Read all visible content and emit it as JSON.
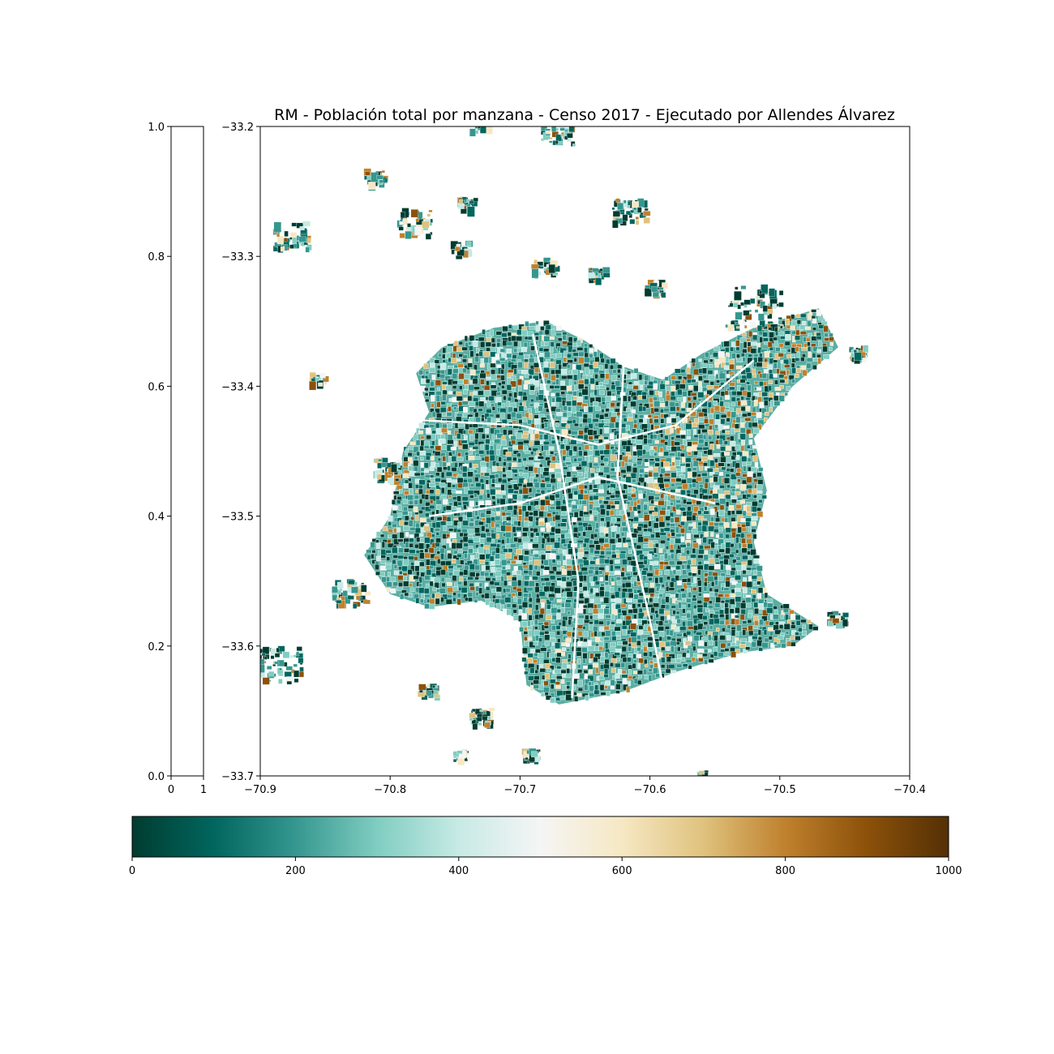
{
  "map": {
    "title": "RM - Población total por manzana - Censo 2017 - Ejecutado por Allendes Álvarez",
    "xlim": [
      -70.9,
      -70.4
    ],
    "ylim": [
      -33.7,
      -33.2
    ],
    "x_ticks": [
      "−70.9",
      "−70.8",
      "−70.7",
      "−70.6",
      "−70.5",
      "−70.4"
    ],
    "y_ticks": [
      "−33.2",
      "−33.3",
      "−33.4",
      "−33.5",
      "−33.6",
      "−33.7"
    ]
  },
  "side_axis": {
    "y_ticks": [
      "1.0",
      "0.8",
      "0.6",
      "0.4",
      "0.2",
      "0.0"
    ],
    "x_ticks": [
      "0",
      "1"
    ]
  },
  "colorbar": {
    "colormap": "BrBG_r",
    "range": [
      0,
      1000
    ],
    "tick_labels": [
      "0",
      "200",
      "400",
      "600",
      "800",
      "1000"
    ],
    "colors": [
      "#003c30",
      "#01665e",
      "#35978f",
      "#80cdc1",
      "#c7eae5",
      "#f5f5f5",
      "#f6e8c3",
      "#dfc27d",
      "#bf812d",
      "#8c510a",
      "#543005"
    ]
  }
}
